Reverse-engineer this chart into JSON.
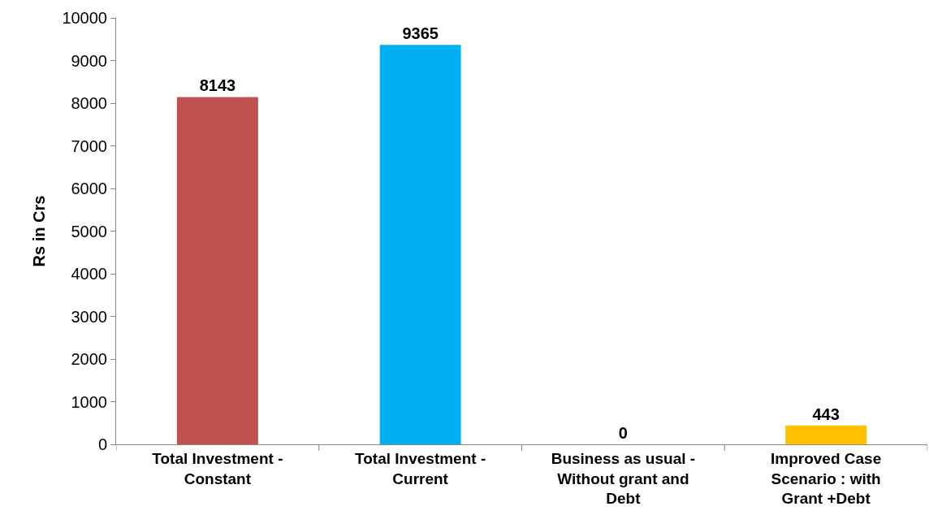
{
  "chart_data": {
    "type": "bar",
    "ylabel": "Rs in Crs",
    "categories": [
      "Total Investment - Constant",
      "Total Investment - Current",
      "Business as usual - Without grant and Debt",
      "Improved Case Scenario : with Grant +Debt"
    ],
    "values": [
      8143,
      9365,
      0,
      443
    ],
    "colors": [
      "#c0504d",
      "#00b0f0",
      "#9bbb59",
      "#ffc000"
    ],
    "ylim": [
      0,
      10000
    ],
    "yticks": [
      0,
      1000,
      2000,
      3000,
      4000,
      5000,
      6000,
      7000,
      8000,
      9000,
      10000
    ],
    "grid": false,
    "data_labels": true
  }
}
